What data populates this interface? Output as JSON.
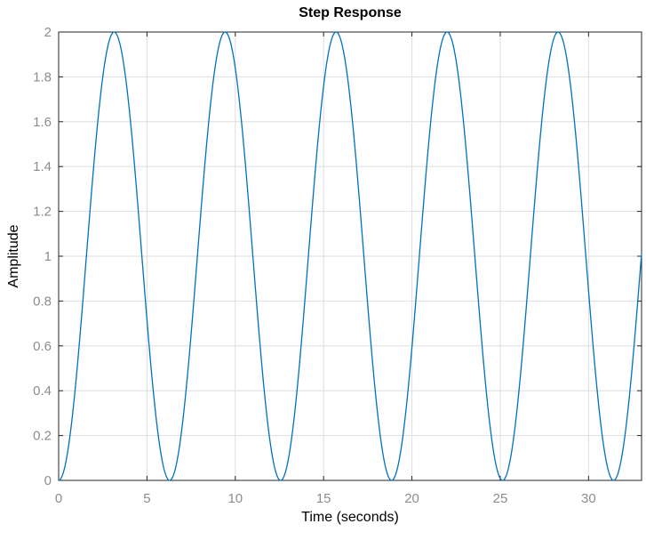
{
  "figure": {
    "background": "#ffffff"
  },
  "chart_data": {
    "type": "line",
    "title": "Step Response",
    "xlabel": "Time (seconds)",
    "ylabel": "Amplitude",
    "xlim": [
      0,
      33
    ],
    "ylim": [
      0,
      2
    ],
    "xticks": [
      0,
      5,
      10,
      15,
      20,
      25,
      30
    ],
    "yticks": [
      0,
      0.2,
      0.4,
      0.6,
      0.8,
      1,
      1.2,
      1.4,
      1.6,
      1.8,
      2
    ],
    "grid": true,
    "legend_position": "none",
    "axis_color": "#262626",
    "grid_color": "#dedede",
    "tick_label_color": "#8c8c8c",
    "series": [
      {
        "name": "step-response",
        "color": "#0072BD",
        "line_width": 1.3,
        "expression": "1 - cos(t)",
        "t_start": 0,
        "t_end": 33,
        "t_step": 0.05,
        "peaks": {
          "t": [
            3.1416,
            9.4248,
            15.708,
            21.991,
            28.274
          ],
          "value": 2
        },
        "zeros": {
          "t": [
            0,
            6.2832,
            12.566,
            18.85,
            25.133,
            31.416
          ],
          "value": 0
        },
        "end_point": {
          "t": 33,
          "value": 1.01
        }
      }
    ]
  }
}
